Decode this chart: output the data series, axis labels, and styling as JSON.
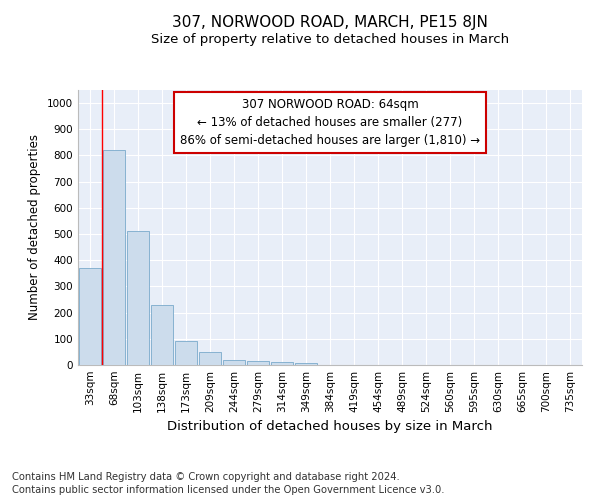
{
  "title_main": "307, NORWOOD ROAD, MARCH, PE15 8JN",
  "title_sub": "Size of property relative to detached houses in March",
  "xlabel": "Distribution of detached houses by size in March",
  "ylabel": "Number of detached properties",
  "categories": [
    "33sqm",
    "68sqm",
    "103sqm",
    "138sqm",
    "173sqm",
    "209sqm",
    "244sqm",
    "279sqm",
    "314sqm",
    "349sqm",
    "384sqm",
    "419sqm",
    "454sqm",
    "489sqm",
    "524sqm",
    "560sqm",
    "595sqm",
    "630sqm",
    "665sqm",
    "700sqm",
    "735sqm"
  ],
  "values": [
    370,
    820,
    510,
    230,
    90,
    50,
    20,
    15,
    10,
    8,
    0,
    0,
    0,
    0,
    0,
    0,
    0,
    0,
    0,
    0,
    0
  ],
  "bar_color": "#ccdcec",
  "bar_edge_color": "#7aaacb",
  "annotation_line1": "307 NORWOOD ROAD: 64sqm",
  "annotation_line2": "← 13% of detached houses are smaller (277)",
  "annotation_line3": "86% of semi-detached houses are larger (1,810) →",
  "annotation_box_facecolor": "#ffffff",
  "annotation_box_edgecolor": "#cc0000",
  "red_line_x": 0.5,
  "ylim": [
    0,
    1050
  ],
  "yticks": [
    0,
    100,
    200,
    300,
    400,
    500,
    600,
    700,
    800,
    900,
    1000
  ],
  "background_color": "#e8eef8",
  "grid_color": "#ffffff",
  "footer_line1": "Contains HM Land Registry data © Crown copyright and database right 2024.",
  "footer_line2": "Contains public sector information licensed under the Open Government Licence v3.0.",
  "title_fontsize": 11,
  "subtitle_fontsize": 9.5,
  "xlabel_fontsize": 9.5,
  "ylabel_fontsize": 8.5,
  "tick_fontsize": 7.5,
  "annotation_fontsize": 8.5,
  "footer_fontsize": 7.2
}
